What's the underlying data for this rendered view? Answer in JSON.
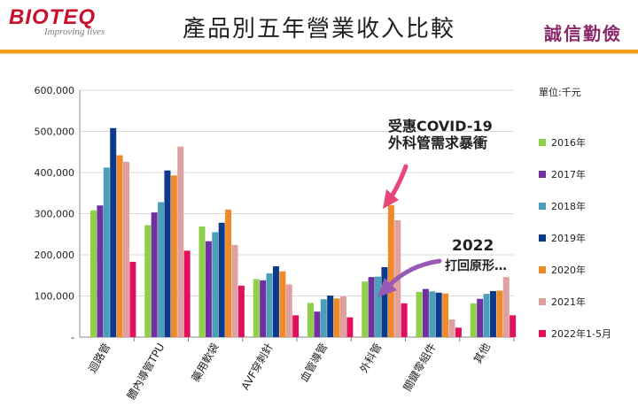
{
  "header": {
    "logo_text": "BIOTEQ",
    "logo_tagline": "Improving lives",
    "title": "產品別五年營業收入比較",
    "motto": "誠信勤儉"
  },
  "unit_label": "單位:千元",
  "annotations": {
    "covid_line1": "受惠COVID-19",
    "covid_line2": "外科管需求暴衝",
    "year_2022": "2022",
    "revert_text": "打回原形…"
  },
  "colors": {
    "title_rule": "#f0a020",
    "brand": "#c8102e",
    "arrow_covid": "#e8457a",
    "arrow_revert": "#9b59b6"
  },
  "chart_data": {
    "type": "bar",
    "categories": [
      "迴路管",
      "體內導管TPU",
      "藥用軟袋",
      "AVF穿刺針",
      "血管導管",
      "外科管",
      "關鍵零組件",
      "其他"
    ],
    "y_ticks": [
      "-",
      "100,000",
      "200,000",
      "300,000",
      "400,000",
      "500,000",
      "600,000"
    ],
    "ylim": [
      0,
      600000
    ],
    "grid": true,
    "legend_position": "right",
    "series": [
      {
        "name": "2016年",
        "color": "#8fcf4a",
        "values": [
          308000,
          272000,
          269000,
          141000,
          83000,
          135000,
          110000,
          82000
        ]
      },
      {
        "name": "2017年",
        "color": "#7030a0",
        "values": [
          320000,
          303000,
          233000,
          138000,
          62000,
          146000,
          117000,
          93000
        ]
      },
      {
        "name": "2018年",
        "color": "#4aa0b8",
        "values": [
          412000,
          328000,
          255000,
          155000,
          92000,
          147000,
          111000,
          105000
        ]
      },
      {
        "name": "2019年",
        "color": "#0b3a8c",
        "values": [
          508000,
          405000,
          278000,
          172000,
          101000,
          170000,
          108000,
          112000
        ]
      },
      {
        "name": "2020年",
        "color": "#ee8a2a",
        "values": [
          442000,
          393000,
          310000,
          160000,
          94000,
          321000,
          106000,
          113000
        ]
      },
      {
        "name": "2021年",
        "color": "#e0a0a0",
        "values": [
          426000,
          463000,
          224000,
          128000,
          99000,
          284000,
          43000,
          146000
        ]
      },
      {
        "name": "2022年1-5月",
        "color": "#e0105e",
        "values": [
          183000,
          210000,
          125000,
          53000,
          48000,
          82000,
          23000,
          53000
        ]
      }
    ]
  }
}
